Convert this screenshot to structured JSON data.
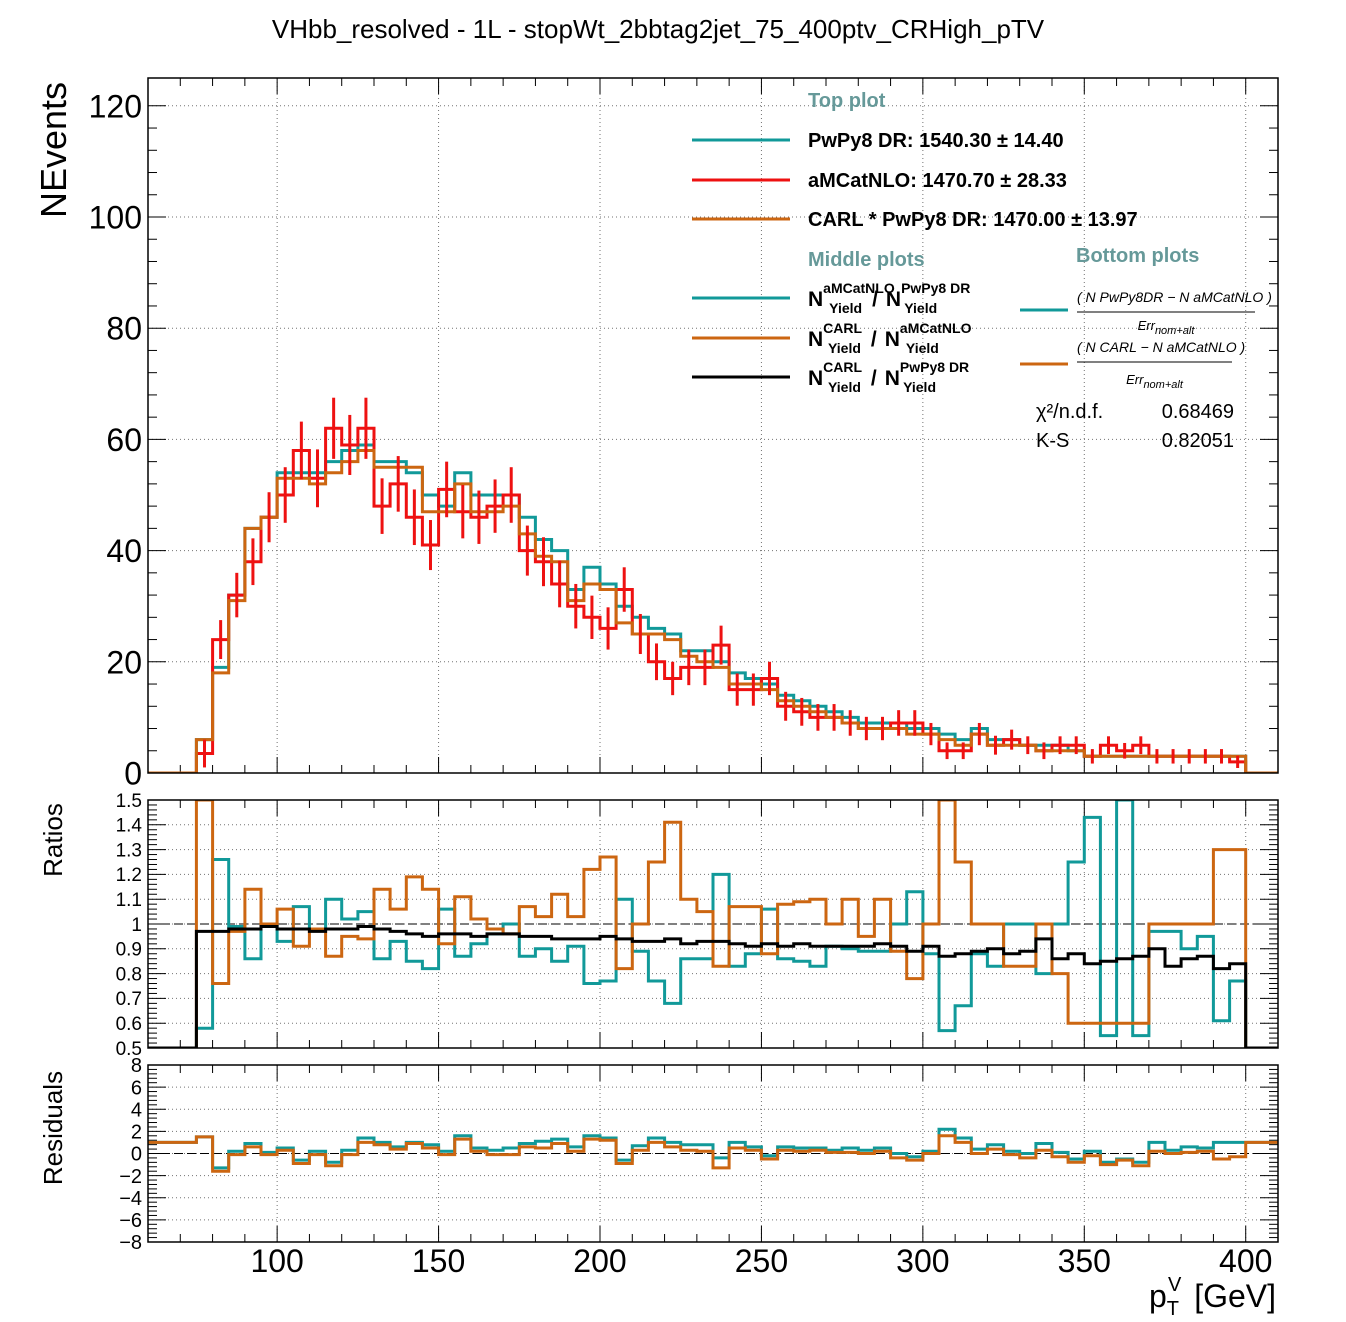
{
  "title": "VHbb_resolved - 1L - stopWt_2bbtag2jet_75_400ptv_CRHigh_pTV",
  "colors": {
    "teal": "#119999",
    "red": "#ee1111",
    "orange": "#cc6611",
    "black": "#000000",
    "heading": "#669999"
  },
  "legend": {
    "top_heading": "Top plot",
    "top_entries": [
      {
        "text": "PwPy8 DR: 1540.30 ± 14.40",
        "color": "#119999"
      },
      {
        "text": "aMCatNLO: 1470.70 ± 28.33",
        "color": "#ee1111"
      },
      {
        "text": "CARL * PwPy8 DR: 1470.00 ± 13.97",
        "color": "#cc6611"
      }
    ],
    "middle_heading": "Middle plots",
    "middle_entries": [
      {
        "sup": "aMCatNLO",
        "sup2": "PwPy8 DR",
        "color": "#119999"
      },
      {
        "sup": "CARL",
        "sup2": "aMCatNLO",
        "color": "#cc6611"
      },
      {
        "sup": "CARL",
        "sup2": "PwPy8 DR",
        "color": "#000000"
      }
    ],
    "yield_sub": "Yield",
    "n_letter": "N",
    "slash": "/",
    "bottom_heading": "Bottom plots",
    "bottom_entries": [
      {
        "num": "N PwPy8DR − N aMCatNLO",
        "color": "#119999"
      },
      {
        "num": "N CARL − N aMCatNLO",
        "color": "#cc6611"
      }
    ],
    "err_label": "Err",
    "err_sub": "nom+alt",
    "stats": [
      {
        "label": "χ²/n.d.f.",
        "value": "0.68469"
      },
      {
        "label": "K-S",
        "value": "0.82051"
      }
    ]
  },
  "chart_data": [
    {
      "panel": "top",
      "type": "histogram-step",
      "ylabel": "NEvents",
      "xlim": [
        60,
        410
      ],
      "ylim": [
        0,
        125
      ],
      "yticks": [
        0,
        20,
        40,
        60,
        80,
        100,
        120
      ],
      "bin_edges": [
        60,
        75,
        80,
        85,
        90,
        95,
        100,
        105,
        110,
        115,
        120,
        125,
        130,
        135,
        140,
        145,
        150,
        155,
        160,
        165,
        170,
        175,
        180,
        185,
        190,
        195,
        200,
        205,
        210,
        215,
        220,
        225,
        230,
        235,
        240,
        245,
        250,
        255,
        260,
        265,
        270,
        275,
        280,
        285,
        290,
        295,
        300,
        305,
        310,
        315,
        320,
        325,
        330,
        335,
        340,
        345,
        350,
        355,
        360,
        365,
        370,
        375,
        380,
        385,
        390,
        395,
        400,
        410
      ],
      "series": [
        {
          "name": "PwPy8 DR",
          "color": "#119999",
          "values": [
            0,
            6,
            19,
            32,
            44,
            46,
            54,
            54,
            54,
            56,
            58,
            59,
            56,
            56,
            54,
            50,
            48,
            54,
            50,
            50,
            50,
            46,
            42,
            40,
            33,
            37,
            34,
            30,
            28,
            26,
            25,
            22,
            22,
            20,
            18,
            17,
            16,
            14,
            13,
            12,
            11,
            10,
            9,
            9,
            9,
            8,
            8,
            7,
            6,
            8,
            6,
            6,
            5,
            5,
            5,
            4,
            3,
            3,
            3,
            3,
            3,
            3,
            3,
            3,
            3,
            3,
            0
          ]
        },
        {
          "name": "aMCatNLO",
          "color": "#ee1111",
          "values": [
            0,
            3.5,
            24,
            32,
            38,
            46,
            50,
            58,
            53,
            62,
            59,
            62,
            48,
            52,
            46,
            41,
            51,
            47,
            46,
            48,
            50,
            40,
            38,
            34,
            30,
            28,
            26,
            33,
            25,
            20,
            17,
            19,
            19,
            23,
            15,
            15,
            17,
            12,
            11,
            10,
            10,
            9,
            8,
            8,
            9,
            9,
            7,
            4,
            4,
            7,
            5,
            6,
            5,
            4,
            5,
            5,
            3,
            5,
            4,
            5,
            3,
            3,
            3,
            3,
            3,
            2,
            0
          ]
        },
        {
          "name": "CARL * PwPy8 DR",
          "color": "#cc6611",
          "values": [
            0,
            6,
            18,
            31,
            44,
            46,
            53,
            53,
            52,
            54,
            56,
            58,
            55,
            55,
            55,
            47,
            47,
            52,
            47,
            47,
            48,
            43,
            39,
            38,
            31,
            34,
            33,
            27,
            25,
            25,
            24,
            21,
            20,
            19,
            16,
            16,
            15,
            13,
            12,
            11,
            10,
            9,
            8,
            8,
            8,
            7,
            7,
            6,
            5,
            7,
            5,
            5,
            5,
            4,
            4,
            4,
            3,
            3,
            3,
            3,
            3,
            3,
            3,
            3,
            3,
            3,
            0
          ]
        }
      ],
      "error_series": "aMCatNLO",
      "errors": [
        0,
        2.5,
        3.5,
        4,
        4.2,
        4.5,
        5,
        5.2,
        5.2,
        5.5,
        5.4,
        5.5,
        5,
        5,
        5,
        4.5,
        5,
        4.8,
        4.8,
        4.8,
        5,
        4.5,
        4.4,
        4.2,
        4,
        3.9,
        3.8,
        4,
        3.6,
        3.3,
        3,
        3.2,
        3.2,
        3.5,
        2.9,
        2.9,
        3,
        2.6,
        2.5,
        2.4,
        2.4,
        2.3,
        2.1,
        2.1,
        2.3,
        2.3,
        2,
        1.5,
        1.5,
        2,
        1.7,
        1.8,
        1.6,
        1.5,
        1.6,
        1.6,
        1.3,
        1.6,
        1.4,
        1.6,
        1.3,
        1.3,
        1.3,
        1.3,
        1.3,
        1.1,
        0
      ]
    },
    {
      "panel": "middle",
      "type": "histogram-step",
      "ylabel": "Ratios",
      "xlim": [
        60,
        410
      ],
      "ylim": [
        0.5,
        1.5
      ],
      "yticks": [
        0.5,
        0.6,
        0.7,
        0.8,
        0.9,
        1,
        1.1,
        1.2,
        1.3,
        1.4,
        1.5
      ],
      "reference_line": 1,
      "series": [
        {
          "name": "aMCatNLO / PwPy8 DR",
          "color": "#119999",
          "values": [
            0.5,
            0.58,
            1.26,
            0.99,
            0.86,
            1,
            0.93,
            1.07,
            0.98,
            1.1,
            1.02,
            1.05,
            0.86,
            0.93,
            0.85,
            0.82,
            1.06,
            0.87,
            0.92,
            0.96,
            1,
            0.87,
            0.9,
            0.85,
            0.91,
            0.76,
            0.77,
            1.1,
            0.89,
            0.77,
            0.68,
            0.86,
            0.86,
            1.2,
            0.83,
            0.88,
            1.06,
            0.86,
            0.85,
            0.83,
            0.91,
            0.9,
            0.89,
            0.89,
            1,
            1.13,
            0.88,
            0.57,
            0.67,
            0.88,
            0.83,
            1,
            1,
            0.8,
            1,
            1.25,
            1.43,
            0.55,
            1.5,
            0.55,
            0.97,
            0.97,
            0.9,
            0.95,
            0.61,
            0.77,
            0.5
          ]
        },
        {
          "name": "CARL / aMCatNLO",
          "color": "#cc6611",
          "values": [
            0.5,
            1.5,
            0.76,
            0.97,
            1.14,
            1,
            1.06,
            0.91,
            0.98,
            0.87,
            0.95,
            0.94,
            1.14,
            1.06,
            1.19,
            1.14,
            0.92,
            1.11,
            1.02,
            0.98,
            0.96,
            1.07,
            1.03,
            1.12,
            1.03,
            1.22,
            1.27,
            0.82,
            1,
            1.25,
            1.41,
            1.1,
            1.05,
            0.83,
            1.07,
            1.07,
            0.88,
            1.08,
            1.09,
            1.1,
            1,
            1.1,
            0.95,
            1.1,
            0.89,
            0.78,
            1.0,
            1.5,
            1.25,
            1.0,
            1.0,
            0.83,
            0.83,
            1.0,
            0.8,
            0.6,
            0.6,
            0.6,
            0.6,
            0.6,
            1.0,
            1.0,
            1.0,
            1.0,
            1.3,
            1.3,
            0.5
          ]
        },
        {
          "name": "CARL / PwPy8 DR",
          "color": "#000000",
          "values": [
            0.5,
            0.97,
            0.97,
            0.98,
            0.98,
            0.99,
            0.98,
            0.98,
            0.97,
            0.98,
            0.98,
            0.99,
            0.98,
            0.97,
            0.96,
            0.95,
            0.96,
            0.96,
            0.95,
            0.96,
            0.96,
            0.95,
            0.95,
            0.94,
            0.94,
            0.94,
            0.95,
            0.94,
            0.93,
            0.93,
            0.94,
            0.92,
            0.93,
            0.93,
            0.92,
            0.91,
            0.92,
            0.91,
            0.92,
            0.91,
            0.91,
            0.91,
            0.91,
            0.92,
            0.91,
            0.89,
            0.91,
            0.87,
            0.88,
            0.89,
            0.9,
            0.88,
            0.89,
            0.94,
            0.86,
            0.88,
            0.84,
            0.85,
            0.86,
            0.87,
            0.9,
            0.83,
            0.86,
            0.87,
            0.82,
            0.84,
            0.5
          ]
        }
      ]
    },
    {
      "panel": "bottom",
      "type": "histogram-step",
      "ylabel": "Residuals",
      "xlabel": "p_T^V [GeV]",
      "xlim": [
        60,
        410
      ],
      "ylim": [
        -8,
        8
      ],
      "yticks": [
        -8,
        -6,
        -4,
        -2,
        0,
        2,
        4,
        6,
        8
      ],
      "xticks": [
        100,
        150,
        200,
        250,
        300,
        350,
        400
      ],
      "reference_line": 0,
      "series": [
        {
          "name": "(N PwPy8DR − N aMCatNLO) / Err nom+alt",
          "color": "#119999",
          "values": [
            1.0,
            1.5,
            -1.3,
            0.2,
            0.9,
            0.1,
            0.5,
            -0.6,
            0.2,
            -0.8,
            0.3,
            1.4,
            1.0,
            0.6,
            1.0,
            0.8,
            0.2,
            1.6,
            0.5,
            0.3,
            0.5,
            0.9,
            1.1,
            1.3,
            0.6,
            1.6,
            1.4,
            -0.6,
            0.7,
            1.4,
            1.0,
            0.8,
            0.8,
            -0.4,
            1.0,
            0.6,
            -0.2,
            0.6,
            0.5,
            0.5,
            0.3,
            0.5,
            0.3,
            0.5,
            0.0,
            -0.3,
            0.2,
            2.2,
            1.4,
            0.4,
            0.8,
            0.2,
            0.0,
            0.9,
            0.1,
            -0.5,
            0.2,
            -0.8,
            -0.5,
            -0.8,
            1.0,
            0.3,
            0.6,
            0.5,
            1.0,
            1.0,
            1.0
          ]
        },
        {
          "name": "(N CARL − N aMCatNLO) / Err nom+alt",
          "color": "#cc6611",
          "values": [
            1.0,
            1.5,
            -1.6,
            -0.1,
            0.6,
            -0.1,
            0.3,
            -0.9,
            -0.1,
            -1.1,
            -0.1,
            1.0,
            0.8,
            0.4,
            0.9,
            0.5,
            -0.1,
            1.3,
            0.2,
            -0.1,
            -0.1,
            0.6,
            0.5,
            0.9,
            0.2,
            1.3,
            1.2,
            -0.9,
            0.3,
            1.0,
            0.6,
            0.3,
            0.2,
            -1.3,
            0.5,
            0.3,
            -0.5,
            0.3,
            0.2,
            0.3,
            0.1,
            0.1,
            0.0,
            0.2,
            -0.4,
            -0.6,
            0.0,
            1.6,
            1.0,
            0.0,
            0.4,
            -0.1,
            -0.4,
            0.3,
            -0.3,
            -0.8,
            -0.2,
            -1.0,
            -0.6,
            -1.1,
            0.2,
            0.0,
            0.1,
            0.2,
            -0.5,
            -0.3,
            1.0
          ]
        }
      ]
    }
  ]
}
